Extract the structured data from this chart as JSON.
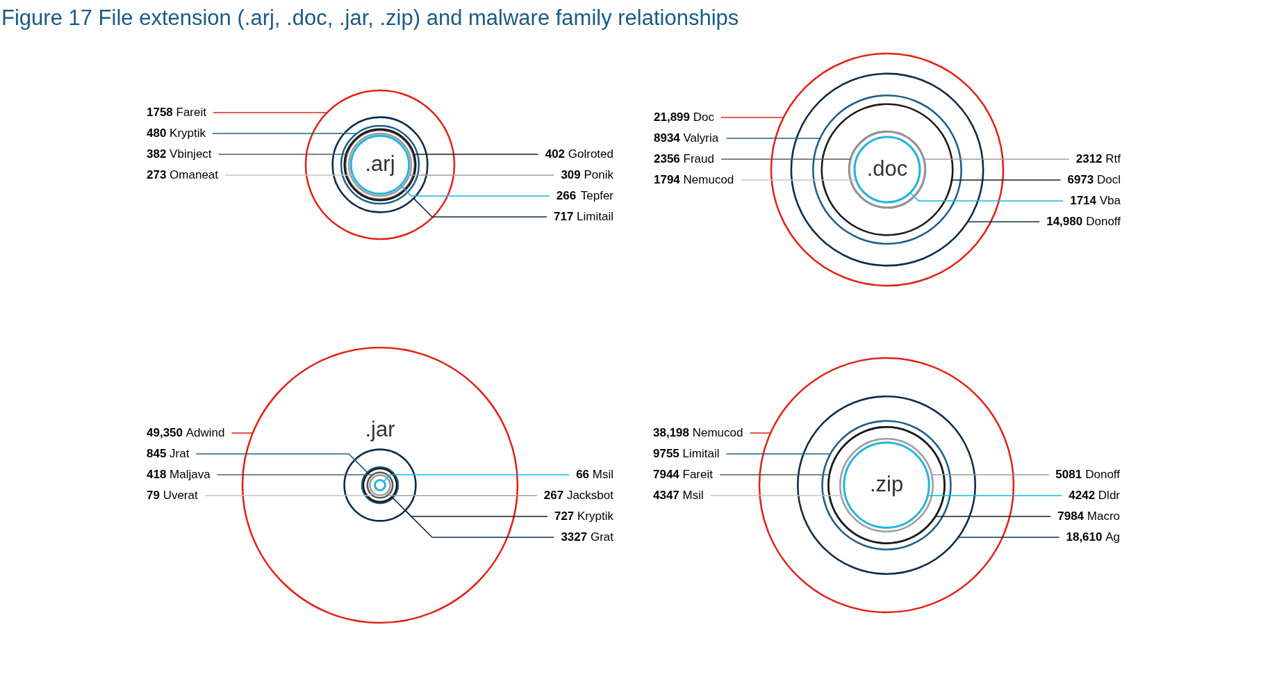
{
  "chart_data": [
    {
      "type": "other",
      "title": "Figure 17  File extension (.arj, .doc, .jar, .zip) and malware family relationships"
    },
    {
      "type": "other",
      "title": ".arj",
      "categories": [
        "Fareit",
        "Kryptik",
        "Vbinject",
        "Omaneat",
        "Golroted",
        "Ponik",
        "Tepfer",
        "Limitail"
      ],
      "values": [
        1758,
        480,
        382,
        273,
        402,
        309,
        266,
        717
      ],
      "value_labels": [
        "1758",
        "480",
        "382",
        "273",
        "402",
        "309",
        "266",
        "717"
      ],
      "colors": [
        "#e2231a",
        "#1e5f8a",
        "#5a5a5d",
        "#c4c4c4",
        "#1a1a1a",
        "#9d9da0",
        "#10b8e6",
        "#0d2d49"
      ]
    },
    {
      "type": "other",
      "title": ".doc",
      "categories": [
        "Doc",
        "Valyria",
        "Fraud",
        "Nemucod",
        "Rtf",
        "Docl",
        "Vba",
        "Donoff"
      ],
      "values": [
        21899,
        8934,
        2356,
        1794,
        2312,
        6973,
        1714,
        14980
      ],
      "value_labels": [
        "21,899",
        "8934",
        "2356",
        "1794",
        "2312",
        "6973",
        "1714",
        "14,980"
      ],
      "colors": [
        "#e2231a",
        "#1e5f8a",
        "#5a5a5d",
        "#c4c4c4",
        "#9d9da0",
        "#1a1a1a",
        "#10b8e6",
        "#0d2d49"
      ]
    },
    {
      "type": "other",
      "title": ".jar",
      "categories": [
        "Adwind",
        "Jrat",
        "Maljava",
        "Uverat",
        "Msil",
        "Jacksbot",
        "Kryptik",
        "Grat"
      ],
      "values": [
        49350,
        845,
        418,
        79,
        66,
        267,
        727,
        3327
      ],
      "value_labels": [
        "49,350",
        "845",
        "418",
        "79",
        "66",
        "267",
        "727",
        "3327"
      ],
      "colors": [
        "#e2231a",
        "#1e5f8a",
        "#5a5a5d",
        "#c4c4c4",
        "#10b8e6",
        "#9d9da0",
        "#1a1a1a",
        "#0d2d49"
      ]
    },
    {
      "type": "other",
      "title": ".zip",
      "categories": [
        "Nemucod",
        "Limitail",
        "Fareit",
        "Msil",
        "Donoff",
        "Dldr",
        "Macro",
        "Ag"
      ],
      "values": [
        38198,
        9755,
        7944,
        4347,
        5081,
        4242,
        7984,
        18610
      ],
      "value_labels": [
        "38,198",
        "9755",
        "7944",
        "4347",
        "5081",
        "4242",
        "7984",
        "18,610"
      ],
      "colors": [
        "#e2231a",
        "#1e5f8a",
        "#5a5a5d",
        "#c4c4c4",
        "#9d9da0",
        "#10b8e6",
        "#1a1a1a",
        "#0d2d49"
      ]
    }
  ]
}
